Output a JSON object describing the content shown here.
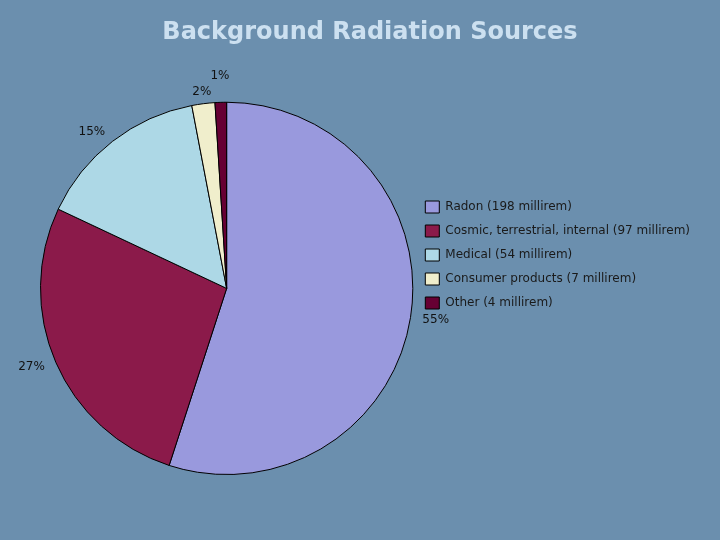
{
  "chart_data": {
    "type": "pie",
    "title": "Background Radiation Sources",
    "categories": [
      "Radon (198 millirem)",
      "Cosmic, terrestrial, internal (97 millirem)",
      "Medical (54 millirem)",
      "Consumer products (7 millirem)",
      "Other (4 millirem)"
    ],
    "values": [
      55,
      27,
      15,
      2,
      1
    ],
    "value_labels": [
      "55%",
      "27%",
      "15%",
      "2%",
      "1%"
    ],
    "colors": [
      "#9999dd",
      "#8b1a4a",
      "#add8e6",
      "#f0eecc",
      "#660033"
    ],
    "data_labels": true,
    "legend": "right"
  }
}
